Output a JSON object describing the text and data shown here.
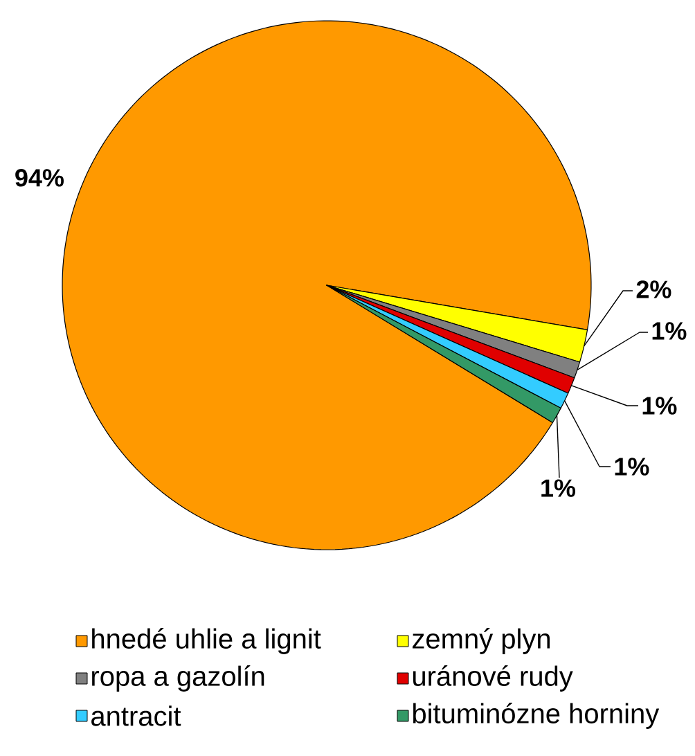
{
  "chart_data": {
    "type": "pie",
    "categories": [
      "hnedé uhlie a lignit",
      "zemný plyn",
      "ropa a gazolín",
      "uránové rudy",
      "antracit",
      "bituminózne horniny"
    ],
    "values": [
      94,
      2,
      1,
      1,
      1,
      1
    ],
    "colors": [
      "#ff9900",
      "#ffff00",
      "#808080",
      "#e00000",
      "#33ccff",
      "#339966"
    ],
    "value_labels": [
      "94%",
      "2%",
      "1%",
      "1%",
      "1%",
      "1%"
    ],
    "legend": "bottom"
  }
}
